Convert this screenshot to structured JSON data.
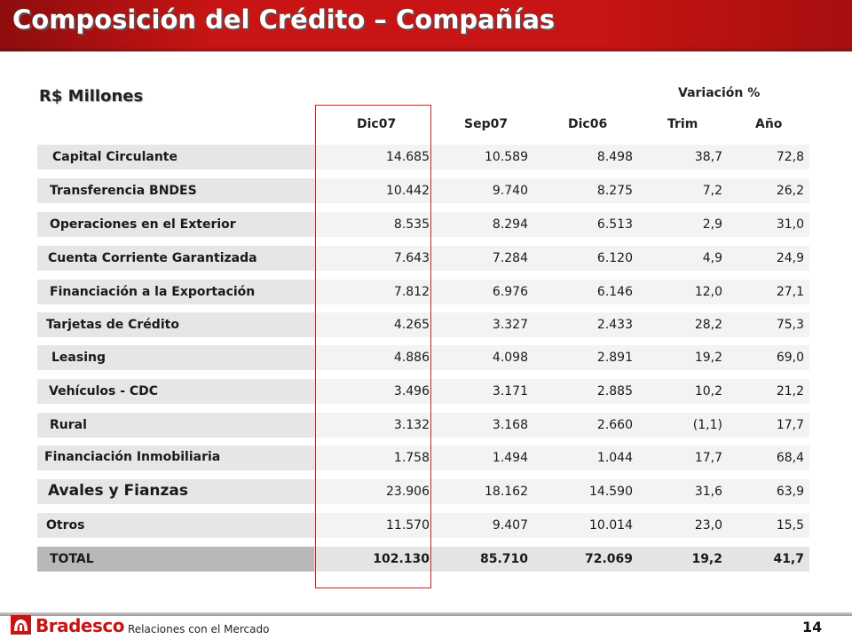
{
  "title": "Composición del Crédito – Compañías",
  "units_label": "R$ Millones",
  "variation_label": "Variación %",
  "columns": [
    "Dic07",
    "Sep07",
    "Dic06",
    "Trim",
    "Año"
  ],
  "rows": [
    {
      "label": "Capital Circulante",
      "values": [
        "14.685",
        "10.589",
        "8.498",
        "38,7",
        "72,8"
      ]
    },
    {
      "label": "Transferencia  BNDES",
      "values": [
        "10.442",
        "9.740",
        "8.275",
        "7,2",
        "26,2"
      ]
    },
    {
      "label": "Operaciones  en el Exterior",
      "values": [
        "8.535",
        "8.294",
        "6.513",
        "2,9",
        "31,0"
      ]
    },
    {
      "label": "Cuenta Corriente  Garantizada",
      "values": [
        "7.643",
        "7.284",
        "6.120",
        "4,9",
        "24,9"
      ]
    },
    {
      "label": "Financiación  a la  Exportación",
      "values": [
        "7.812",
        "6.976",
        "6.146",
        "12,0",
        "27,1"
      ]
    },
    {
      "label": "Tarjetas de Crédito",
      "values": [
        "4.265",
        "3.327",
        "2.433",
        "28,2",
        "75,3"
      ]
    },
    {
      "label": "Leasing",
      "values": [
        "4.886",
        "4.098",
        "2.891",
        "19,2",
        "69,0"
      ]
    },
    {
      "label": "Vehículos - CDC",
      "values": [
        "3.496",
        "3.171",
        "2.885",
        "10,2",
        "21,2"
      ]
    },
    {
      "label": "Rural",
      "values": [
        "3.132",
        "3.168",
        "2.660",
        "(1,1)",
        "17,7"
      ]
    },
    {
      "label": "Financiación Inmobiliaria",
      "values": [
        "1.758",
        "1.494",
        "1.044",
        "17,7",
        "68,4"
      ]
    },
    {
      "label": "Avales y Fianzas",
      "values": [
        "23.906",
        "18.162",
        "14.590",
        "31,6",
        "63,9"
      ]
    },
    {
      "label": "Otros",
      "values": [
        "11.570",
        "9.407",
        "10.014",
        "23,0",
        "15,5"
      ]
    },
    {
      "label": "TOTAL",
      "values": [
        "102.130",
        "85.710",
        "72.069",
        "19,2",
        "41,7"
      ]
    }
  ],
  "footer": {
    "brand": "Bradesco",
    "caption": "Relaciones  con el Mercado",
    "page_number": "14"
  },
  "colors": {
    "brand_red": "#c81414",
    "highlight_border": "#d42020",
    "label_bg": "#e6e6e6",
    "value_bg": "#f3f3f3",
    "total_label_bg": "#b8b8b8"
  },
  "icons": {
    "logo": "bradesco-tree-icon"
  }
}
